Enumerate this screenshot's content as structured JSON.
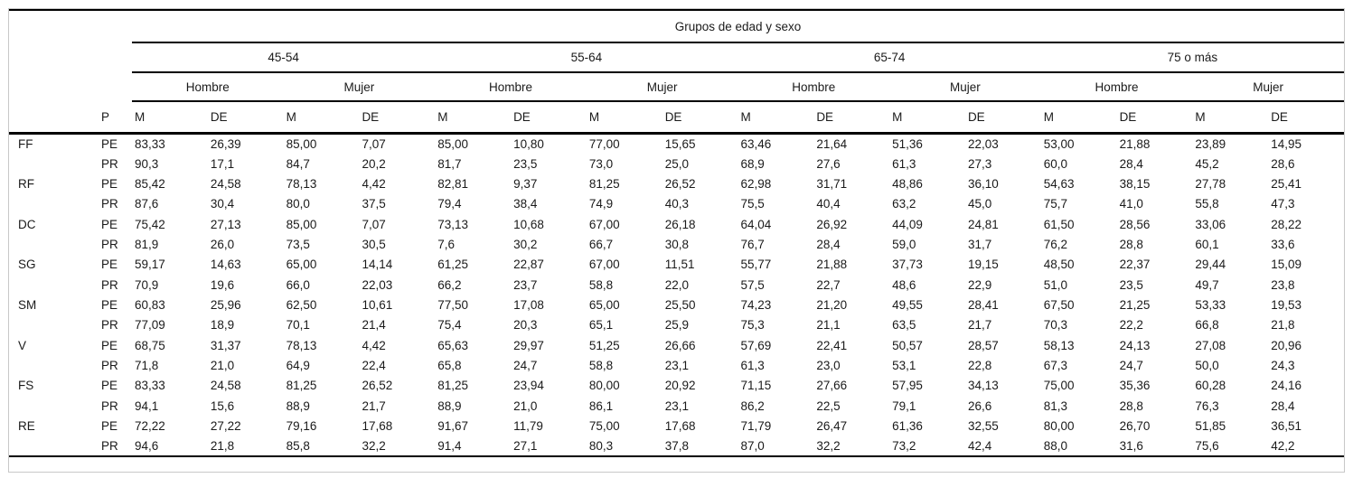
{
  "table": {
    "title": "Grupos de edad y sexo",
    "p_header": "P",
    "age_groups": [
      {
        "label": "45-54"
      },
      {
        "label": "55-64"
      },
      {
        "label": "65-74"
      },
      {
        "label": "75 o más"
      }
    ],
    "sex_labels": [
      "Hombre",
      "Mujer"
    ],
    "stat_labels": [
      "M",
      "DE"
    ],
    "rows": [
      {
        "label": "FF",
        "p": "PE",
        "values": [
          "83,33",
          "26,39",
          "85,00",
          "7,07",
          "85,00",
          "10,80",
          "77,00",
          "15,65",
          "63,46",
          "21,64",
          "51,36",
          "22,03",
          "53,00",
          "21,88",
          "23,89",
          "14,95"
        ]
      },
      {
        "label": "",
        "p": "PR",
        "values": [
          "90,3",
          "17,1",
          "84,7",
          "20,2",
          "81,7",
          "23,5",
          "73,0",
          "25,0",
          "68,9",
          "27,6",
          "61,3",
          "27,3",
          "60,0",
          "28,4",
          "45,2",
          "28,6"
        ]
      },
      {
        "label": "RF",
        "p": "PE",
        "values": [
          "85,42",
          "24,58",
          "78,13",
          "4,42",
          "82,81",
          "9,37",
          "81,25",
          "26,52",
          "62,98",
          "31,71",
          "48,86",
          "36,10",
          "54,63",
          "38,15",
          "27,78",
          "25,41"
        ]
      },
      {
        "label": "",
        "p": "PR",
        "values": [
          "87,6",
          "30,4",
          "80,0",
          "37,5",
          "79,4",
          "38,4",
          "74,9",
          "40,3",
          "75,5",
          "40,4",
          "63,2",
          "45,0",
          "75,7",
          "41,0",
          "55,8",
          "47,3"
        ]
      },
      {
        "label": "DC",
        "p": "PE",
        "values": [
          "75,42",
          "27,13",
          "85,00",
          "7,07",
          "73,13",
          "10,68",
          "67,00",
          "26,18",
          "64,04",
          "26,92",
          "44,09",
          "24,81",
          "61,50",
          "28,56",
          "33,06",
          "28,22"
        ]
      },
      {
        "label": "",
        "p": "PR",
        "values": [
          "81,9",
          "26,0",
          "73,5",
          "30,5",
          "7,6",
          "30,2",
          "66,7",
          "30,8",
          "76,7",
          "28,4",
          "59,0",
          "31,7",
          "76,2",
          "28,8",
          "60,1",
          "33,6"
        ]
      },
      {
        "label": "SG",
        "p": "PE",
        "values": [
          "59,17",
          "14,63",
          "65,00",
          "14,14",
          "61,25",
          "22,87",
          "67,00",
          "11,51",
          "55,77",
          "21,88",
          "37,73",
          "19,15",
          "48,50",
          "22,37",
          "29,44",
          "15,09"
        ]
      },
      {
        "label": "",
        "p": "PR",
        "values": [
          "70,9",
          "19,6",
          "66,0",
          "22,03",
          "66,2",
          "23,7",
          "58,8",
          "22,0",
          "57,5",
          "22,7",
          "48,6",
          "22,9",
          "51,0",
          "23,5",
          "49,7",
          "23,8"
        ]
      },
      {
        "label": "SM",
        "p": "PE",
        "values": [
          "60,83",
          "25,96",
          "62,50",
          "10,61",
          "77,50",
          "17,08",
          "65,00",
          "25,50",
          "74,23",
          "21,20",
          "49,55",
          "28,41",
          "67,50",
          "21,25",
          "53,33",
          "19,53"
        ]
      },
      {
        "label": "",
        "p": "PR",
        "values": [
          "77,09",
          "18,9",
          "70,1",
          "21,4",
          "75,4",
          "20,3",
          "65,1",
          "25,9",
          "75,3",
          "21,1",
          "63,5",
          "21,7",
          "70,3",
          "22,2",
          "66,8",
          "21,8"
        ]
      },
      {
        "label": "V",
        "p": "PE",
        "values": [
          "68,75",
          "31,37",
          "78,13",
          "4,42",
          "65,63",
          "29,97",
          "51,25",
          "26,66",
          "57,69",
          "22,41",
          "50,57",
          "28,57",
          "58,13",
          "24,13",
          "27,08",
          "20,96"
        ]
      },
      {
        "label": "",
        "p": "PR",
        "values": [
          "71,8",
          "21,0",
          "64,9",
          "22,4",
          "65,8",
          "24,7",
          "58,8",
          "23,1",
          "61,3",
          "23,0",
          "53,1",
          "22,8",
          "67,3",
          "24,7",
          "50,0",
          "24,3"
        ]
      },
      {
        "label": "FS",
        "p": "PE",
        "values": [
          "83,33",
          "24,58",
          "81,25",
          "26,52",
          "81,25",
          "23,94",
          "80,00",
          "20,92",
          "71,15",
          "27,66",
          "57,95",
          "34,13",
          "75,00",
          "35,36",
          "60,28",
          "24,16"
        ]
      },
      {
        "label": "",
        "p": "PR",
        "values": [
          "94,1",
          "15,6",
          "88,9",
          "21,7",
          "88,9",
          "21,0",
          "86,1",
          "23,1",
          "86,2",
          "22,5",
          "79,1",
          "26,6",
          "81,3",
          "28,8",
          "76,3",
          "28,4"
        ]
      },
      {
        "label": "RE",
        "p": "PE",
        "values": [
          "72,22",
          "27,22",
          "79,16",
          "17,68",
          "91,67",
          "11,79",
          "75,00",
          "17,68",
          "71,79",
          "26,47",
          "61,36",
          "32,55",
          "80,00",
          "26,70",
          "51,85",
          "36,51"
        ]
      },
      {
        "label": "",
        "p": "PR",
        "values": [
          "94,6",
          "21,8",
          "85,8",
          "32,2",
          "91,4",
          "27,1",
          "80,3",
          "37,8",
          "87,0",
          "32,2",
          "73,2",
          "42,4",
          "88,0",
          "31,6",
          "75,6",
          "42,2"
        ]
      }
    ]
  },
  "colors": {
    "rule": "#000000",
    "frame_border": "#c8c8c8",
    "text": "#1a1a1a",
    "background": "#ffffff"
  }
}
